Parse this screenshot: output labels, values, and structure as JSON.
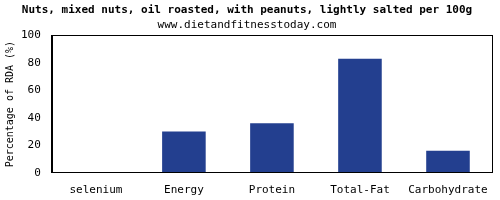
{
  "chart_data": {
    "type": "bar",
    "title": "Nuts, mixed nuts, oil roasted, with peanuts, lightly salted per 100g",
    "subtitle": "www.dietandfitnesstoday.com",
    "y_label": "Percentage of RDA (%)",
    "categories": [
      "selenium",
      "Energy",
      "Protein",
      "Total-Fat",
      "Carbohydrate"
    ],
    "values": [
      0,
      30,
      36,
      83,
      16
    ],
    "color": "#233f8f",
    "ylim": [
      0,
      100
    ],
    "yticks": [
      0,
      20,
      40,
      60,
      80,
      100
    ],
    "grid": false
  }
}
